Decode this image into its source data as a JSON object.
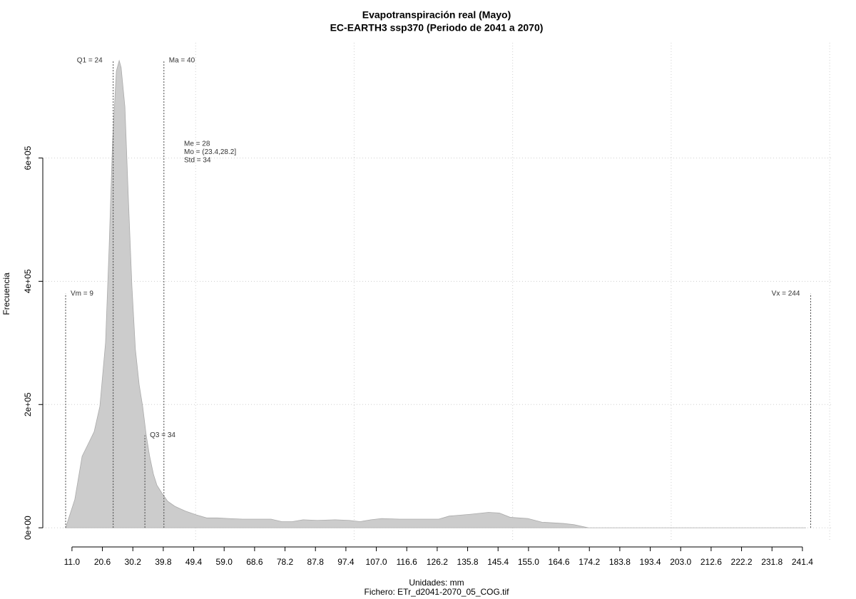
{
  "chart_data": {
    "type": "area",
    "title": "Evapotranspiración real (Mayo)",
    "subtitle": "EC-EARTH3 ssp370 (Periodo de 2041 a 2070)",
    "x_label": "Unidades: mm",
    "caption": "Fichero: ETr_d2041-2070_05_COG.tif",
    "y_label": "Frecuencia",
    "color": "#cccccc",
    "line_color": "#aaaaaa",
    "x": [
      9.0,
      11.9,
      14.2,
      16.4,
      18.0,
      19.8,
      21.6,
      22.7,
      23.8,
      25.0,
      25.9,
      26.5,
      27.7,
      28.8,
      29.9,
      31.0,
      32.2,
      33.3,
      34.4,
      35.5,
      36.7,
      37.8,
      39.4,
      41.2,
      43.4,
      46.8,
      50.2,
      53.5,
      56.9,
      60.3,
      64.8,
      73.8,
      77.2,
      80.5,
      83.9,
      88.4,
      94.0,
      98.5,
      101.9,
      105.3,
      108.7,
      114.3,
      123.3,
      126.7,
      130.0,
      136.8,
      142.4,
      145.8,
      149.2,
      154.8,
      159.3,
      166.0,
      169.4,
      173.9,
      242.5
    ],
    "values": [
      0,
      46000,
      116000,
      139000,
      156000,
      197000,
      301000,
      452000,
      626000,
      741000,
      758000,
      747000,
      683000,
      533000,
      393000,
      290000,
      232000,
      197000,
      151000,
      116000,
      87000,
      69000,
      56000,
      43000,
      35000,
      27000,
      21000,
      16000,
      16000,
      15000,
      14000,
      14000,
      10000,
      10000,
      13000,
      12000,
      13000,
      12000,
      10000,
      13000,
      15000,
      14000,
      14000,
      14000,
      19000,
      22000,
      25000,
      24000,
      17000,
      15000,
      9000,
      7000,
      5000,
      0,
      0
    ],
    "xlim": [
      1.8,
      251.1
    ],
    "ylim": [
      -23000,
      787000
    ],
    "xticks": [
      {
        "value": 11.0,
        "label": "11.0"
      },
      20.6,
      30.2,
      39.8,
      49.4,
      {
        "value": 59.0,
        "label": "59.0"
      },
      68.6,
      78.2,
      87.8,
      97.4,
      {
        "value": 107.0,
        "label": "107.0"
      },
      116.6,
      126.2,
      135.8,
      145.4,
      {
        "value": 155.0,
        "label": "155.0"
      },
      164.6,
      174.2,
      183.8,
      193.4,
      {
        "value": 203.0,
        "label": "203.0"
      },
      212.6,
      222.2,
      231.8,
      241.4
    ],
    "yticks": [
      {
        "value": 0,
        "label": "0e+00"
      },
      {
        "value": 200000,
        "label": "2e+05"
      },
      {
        "value": 400000,
        "label": "4e+05"
      },
      {
        "value": 600000,
        "label": "6e+05"
      }
    ],
    "xgrid": [
      50,
      100,
      150,
      200,
      250
    ],
    "grid": true,
    "markers": [
      {
        "label": "Vm = 9",
        "x": 9,
        "y": 380000,
        "side": "right"
      },
      {
        "label": "Q1 = 24",
        "x": 24,
        "y": 758000,
        "side": "left"
      },
      {
        "label": "Q3 = 34",
        "x": 34,
        "y": 150000,
        "side": "right"
      },
      {
        "label": "Ma = 40",
        "x": 40,
        "y": 758000,
        "side": "right"
      },
      {
        "label": "Vx = 244",
        "x": 244,
        "y": 380000,
        "side": "left"
      }
    ],
    "stats_text": [
      "Me = 28",
      "Mo = (23.4,28.2]",
      "Std = 34"
    ]
  }
}
